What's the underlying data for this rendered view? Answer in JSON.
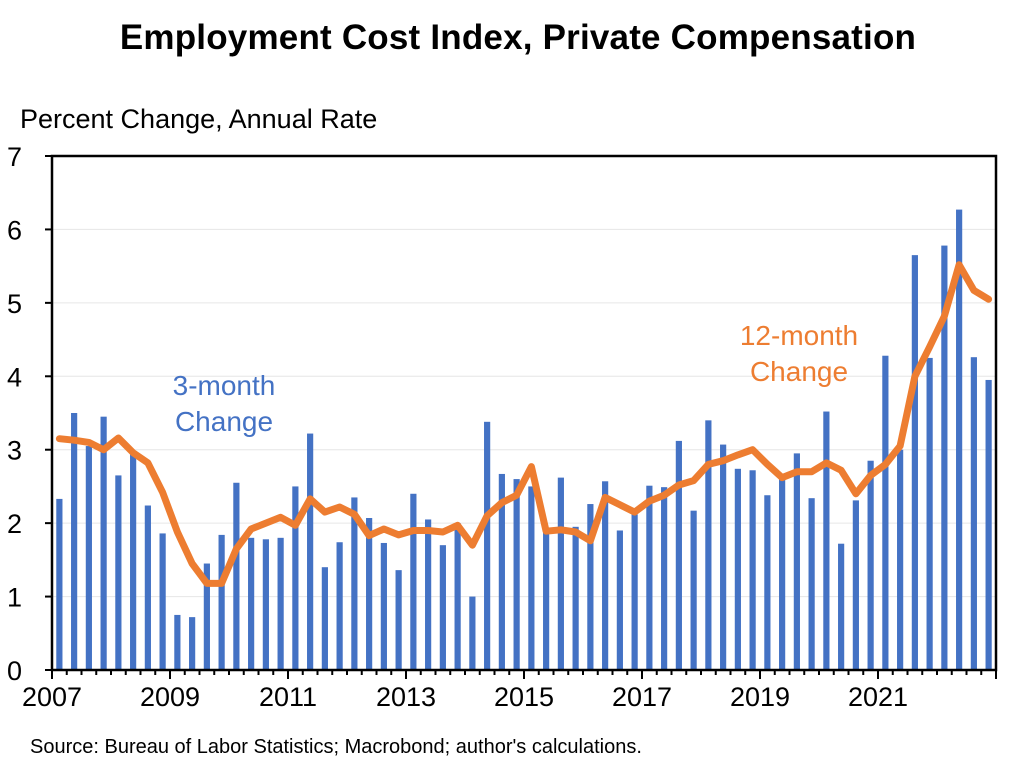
{
  "title": "Employment Cost Index, Private Compensation",
  "y_unit_label": "Percent Change, Annual Rate",
  "source": "Source: Bureau of Labor Statistics; Macrobond; author's calculations.",
  "colors": {
    "bars": "#4472C4",
    "line": "#ED7D31",
    "axis": "#000000",
    "grid": "#E6E6E6"
  },
  "chart_data": {
    "type": "bar",
    "title": "Employment Cost Index, Private Compensation",
    "ylabel": "Percent Change, Annual Rate",
    "xlabel": "",
    "ylim": [
      0,
      7
    ],
    "y_ticks": [
      "0",
      "1",
      "2",
      "3",
      "4",
      "5",
      "6",
      "7"
    ],
    "x_tick_labels": [
      "2007",
      "2009",
      "2011",
      "2013",
      "2015",
      "2017",
      "2019",
      "2021"
    ],
    "grid": "horizontal",
    "categories": [
      "2007Q1",
      "2007Q2",
      "2007Q3",
      "2007Q4",
      "2008Q1",
      "2008Q2",
      "2008Q3",
      "2008Q4",
      "2009Q1",
      "2009Q2",
      "2009Q3",
      "2009Q4",
      "2010Q1",
      "2010Q2",
      "2010Q3",
      "2010Q4",
      "2011Q1",
      "2011Q2",
      "2011Q3",
      "2011Q4",
      "2012Q1",
      "2012Q2",
      "2012Q3",
      "2012Q4",
      "2013Q1",
      "2013Q2",
      "2013Q3",
      "2013Q4",
      "2014Q1",
      "2014Q2",
      "2014Q3",
      "2014Q4",
      "2015Q1",
      "2015Q2",
      "2015Q3",
      "2015Q4",
      "2016Q1",
      "2016Q2",
      "2016Q3",
      "2016Q4",
      "2017Q1",
      "2017Q2",
      "2017Q3",
      "2017Q4",
      "2018Q1",
      "2018Q2",
      "2018Q3",
      "2018Q4",
      "2019Q1",
      "2019Q2",
      "2019Q3",
      "2019Q4",
      "2020Q1",
      "2020Q2",
      "2020Q3",
      "2020Q4",
      "2021Q1",
      "2021Q2",
      "2021Q3",
      "2021Q4",
      "2022Q1",
      "2022Q2",
      "2022Q3",
      "2022Q4"
    ],
    "series": [
      {
        "name": "3-month Change",
        "type": "bar",
        "values": [
          2.33,
          3.5,
          3.05,
          3.45,
          2.65,
          2.95,
          2.24,
          1.86,
          0.75,
          0.72,
          1.45,
          1.84,
          2.55,
          1.8,
          1.78,
          1.8,
          2.5,
          3.22,
          1.4,
          1.74,
          2.35,
          2.07,
          1.73,
          1.36,
          2.4,
          2.05,
          1.7,
          2.0,
          1.0,
          3.38,
          2.67,
          2.6,
          2.5,
          1.9,
          2.62,
          1.95,
          2.26,
          2.57,
          1.9,
          2.12,
          2.51,
          2.49,
          3.12,
          2.17,
          3.4,
          3.07,
          2.74,
          2.72,
          2.38,
          2.6,
          2.95,
          2.34,
          3.52,
          1.72,
          2.31,
          2.85,
          4.28,
          3.0,
          5.65,
          4.25,
          5.78,
          6.27,
          4.26,
          3.95
        ]
      },
      {
        "name": "12-month Change",
        "type": "line",
        "values": [
          3.15,
          3.13,
          3.1,
          3.0,
          3.16,
          2.96,
          2.82,
          2.42,
          1.88,
          1.45,
          1.18,
          1.18,
          1.65,
          1.92,
          2.0,
          2.08,
          1.97,
          2.33,
          2.15,
          2.22,
          2.12,
          1.83,
          1.92,
          1.84,
          1.9,
          1.9,
          1.88,
          1.97,
          1.7,
          2.1,
          2.28,
          2.38,
          2.77,
          1.89,
          1.91,
          1.88,
          1.76,
          2.35,
          2.25,
          2.15,
          2.3,
          2.38,
          2.52,
          2.58,
          2.8,
          2.85,
          2.93,
          3.0,
          2.8,
          2.62,
          2.7,
          2.7,
          2.82,
          2.72,
          2.4,
          2.65,
          2.8,
          3.05,
          4.0,
          4.4,
          4.82,
          5.52,
          5.17,
          5.05
        ]
      }
    ],
    "annotations": [
      {
        "text": [
          "3-month",
          "Change"
        ],
        "series": "3-month Change"
      },
      {
        "text": [
          "12-month",
          "Change"
        ],
        "series": "12-month Change"
      }
    ]
  }
}
